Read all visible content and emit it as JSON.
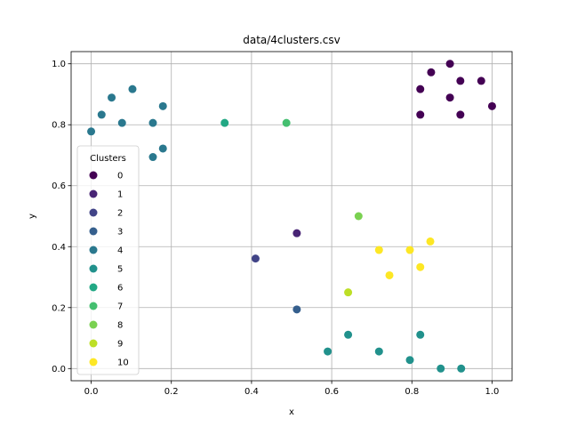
{
  "chart_data": {
    "type": "scatter",
    "title": "data/4clusters.csv",
    "xlabel": "x",
    "ylabel": "y",
    "xlim": [
      -0.05,
      1.05
    ],
    "ylim": [
      -0.04,
      1.04
    ],
    "xticks": [
      "0.0",
      "0.2",
      "0.4",
      "0.6",
      "0.8",
      "1.0"
    ],
    "yticks": [
      "0.0",
      "0.2",
      "0.4",
      "0.6",
      "0.8",
      "1.0"
    ],
    "grid": true,
    "legend": {
      "title": "Clusters",
      "position": "center-left",
      "labels": [
        "0",
        "1",
        "2",
        "3",
        "4",
        "5",
        "6",
        "7",
        "8",
        "9",
        "10"
      ]
    },
    "colors": [
      "#440154",
      "#482475",
      "#414487",
      "#355f8d",
      "#2a788e",
      "#21918c",
      "#22a884",
      "#44bf70",
      "#7ad151",
      "#bddf26",
      "#fde725"
    ],
    "points": [
      {
        "x": 0.895,
        "y": 1.0,
        "cluster": 0
      },
      {
        "x": 0.848,
        "y": 0.972,
        "cluster": 0
      },
      {
        "x": 0.973,
        "y": 0.944,
        "cluster": 0
      },
      {
        "x": 0.921,
        "y": 0.944,
        "cluster": 0
      },
      {
        "x": 0.821,
        "y": 0.917,
        "cluster": 0
      },
      {
        "x": 0.895,
        "y": 0.889,
        "cluster": 0
      },
      {
        "x": 1.0,
        "y": 0.861,
        "cluster": 0
      },
      {
        "x": 0.821,
        "y": 0.833,
        "cluster": 0
      },
      {
        "x": 0.921,
        "y": 0.833,
        "cluster": 0
      },
      {
        "x": 0.513,
        "y": 0.444,
        "cluster": 1
      },
      {
        "x": 0.41,
        "y": 0.361,
        "cluster": 2
      },
      {
        "x": 0.513,
        "y": 0.194,
        "cluster": 3
      },
      {
        "x": 0.103,
        "y": 0.917,
        "cluster": 4
      },
      {
        "x": 0.051,
        "y": 0.889,
        "cluster": 4
      },
      {
        "x": 0.179,
        "y": 0.861,
        "cluster": 4
      },
      {
        "x": 0.026,
        "y": 0.833,
        "cluster": 4
      },
      {
        "x": 0.077,
        "y": 0.806,
        "cluster": 4
      },
      {
        "x": 0.154,
        "y": 0.806,
        "cluster": 4
      },
      {
        "x": 0.0,
        "y": 0.778,
        "cluster": 4
      },
      {
        "x": 0.179,
        "y": 0.722,
        "cluster": 4
      },
      {
        "x": 0.154,
        "y": 0.694,
        "cluster": 4
      },
      {
        "x": 0.641,
        "y": 0.111,
        "cluster": 5
      },
      {
        "x": 0.821,
        "y": 0.111,
        "cluster": 5
      },
      {
        "x": 0.59,
        "y": 0.056,
        "cluster": 5
      },
      {
        "x": 0.718,
        "y": 0.056,
        "cluster": 5
      },
      {
        "x": 0.795,
        "y": 0.028,
        "cluster": 5
      },
      {
        "x": 0.872,
        "y": 0.0,
        "cluster": 5
      },
      {
        "x": 0.923,
        "y": 0.0,
        "cluster": 5
      },
      {
        "x": 0.333,
        "y": 0.806,
        "cluster": 6
      },
      {
        "x": 0.487,
        "y": 0.806,
        "cluster": 7
      },
      {
        "x": 0.667,
        "y": 0.5,
        "cluster": 8
      },
      {
        "x": 0.641,
        "y": 0.25,
        "cluster": 9
      },
      {
        "x": 0.718,
        "y": 0.389,
        "cluster": 10
      },
      {
        "x": 0.795,
        "y": 0.389,
        "cluster": 10
      },
      {
        "x": 0.846,
        "y": 0.417,
        "cluster": 10
      },
      {
        "x": 0.821,
        "y": 0.333,
        "cluster": 10
      },
      {
        "x": 0.744,
        "y": 0.306,
        "cluster": 10
      }
    ]
  }
}
